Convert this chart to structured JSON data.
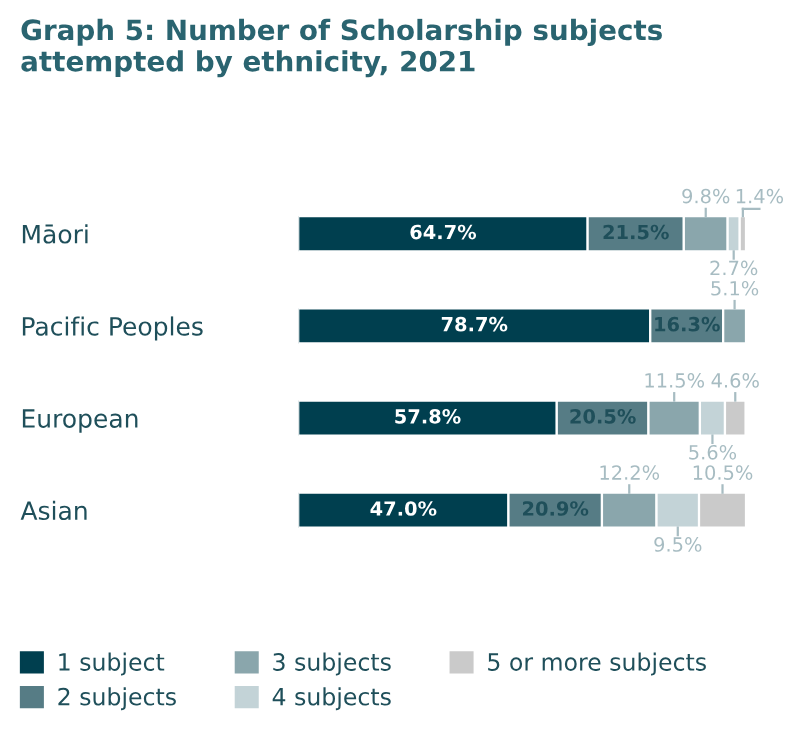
{
  "chart_data": {
    "type": "bar",
    "orientation": "horizontal",
    "stacked": true,
    "title": "Graph 5: Number of Scholarship subjects attempted by ethnicity, 2021",
    "categories": [
      "Māori",
      "Pacific Peoples",
      "European",
      "Asian"
    ],
    "series": [
      {
        "name": "1 subject",
        "color": "#003f4f",
        "values": [
          64.7,
          78.7,
          57.8,
          47.0
        ],
        "value_labels": [
          "64.7%",
          "78.7%",
          "57.8%",
          "47.0%"
        ]
      },
      {
        "name": "2 subjects",
        "color": "#567c85",
        "values": [
          21.5,
          16.3,
          20.5,
          20.9
        ],
        "value_labels": [
          "21.5%",
          "16.3%",
          "20.5%",
          "20.9%"
        ]
      },
      {
        "name": "3 subjects",
        "color": "#8aa6ac",
        "values": [
          9.8,
          5.1,
          11.5,
          12.2
        ],
        "value_labels": [
          "9.8%",
          "5.1%",
          "11.5%",
          "12.2%"
        ]
      },
      {
        "name": "4 subjects",
        "color": "#c3d3d7",
        "values": [
          2.7,
          null,
          5.6,
          9.5
        ],
        "value_labels": [
          "2.7%",
          null,
          "5.6%",
          "9.5%"
        ]
      },
      {
        "name": "5 or more subjects",
        "color": "#cacaca",
        "values": [
          1.4,
          null,
          4.6,
          10.5
        ],
        "value_labels": [
          "1.4%",
          null,
          "4.6%",
          "10.5%"
        ]
      }
    ],
    "tick_labels": "y",
    "grid": false,
    "legend": "bottom"
  }
}
